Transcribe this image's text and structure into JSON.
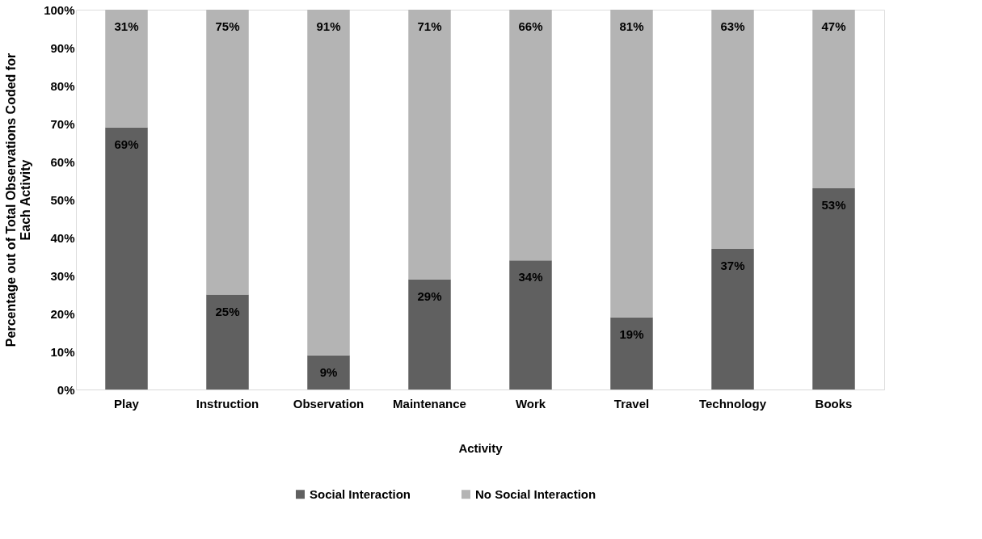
{
  "chart_data": {
    "type": "bar",
    "stacked": true,
    "xlabel": "Activity",
    "ylabel": "Percentage out of Total Observations Coded for\nEach Activity",
    "categories": [
      "Play",
      "Instruction",
      "Observation",
      "Maintenance",
      "Work",
      "Travel",
      "Technology",
      "Books"
    ],
    "series": [
      {
        "name": "Social Interaction",
        "color": "#606060",
        "values": [
          69,
          25,
          9,
          29,
          34,
          19,
          37,
          53
        ],
        "value_labels": [
          "69%",
          "25%",
          "9%",
          "29%",
          "34%",
          "19%",
          "37%",
          "53%"
        ]
      },
      {
        "name": "No Social Interaction",
        "color": "#b4b4b4",
        "values": [
          31,
          75,
          91,
          71,
          66,
          81,
          63,
          47
        ],
        "value_labels": [
          "31%",
          "75%",
          "91%",
          "71%",
          "66%",
          "81%",
          "63%",
          "47%"
        ]
      }
    ],
    "ylim": [
      0,
      100
    ],
    "yticks": [
      {
        "value": 0,
        "label": "0%"
      },
      {
        "value": 10,
        "label": "10%"
      },
      {
        "value": 20,
        "label": "20%"
      },
      {
        "value": 30,
        "label": "30%"
      },
      {
        "value": 40,
        "label": "40%"
      },
      {
        "value": 50,
        "label": "50%"
      },
      {
        "value": 60,
        "label": "60%"
      },
      {
        "value": 70,
        "label": "70%"
      },
      {
        "value": 80,
        "label": "80%"
      },
      {
        "value": 90,
        "label": "90%"
      },
      {
        "value": 100,
        "label": "100%"
      }
    ],
    "grid": false,
    "legend": "bottom"
  }
}
